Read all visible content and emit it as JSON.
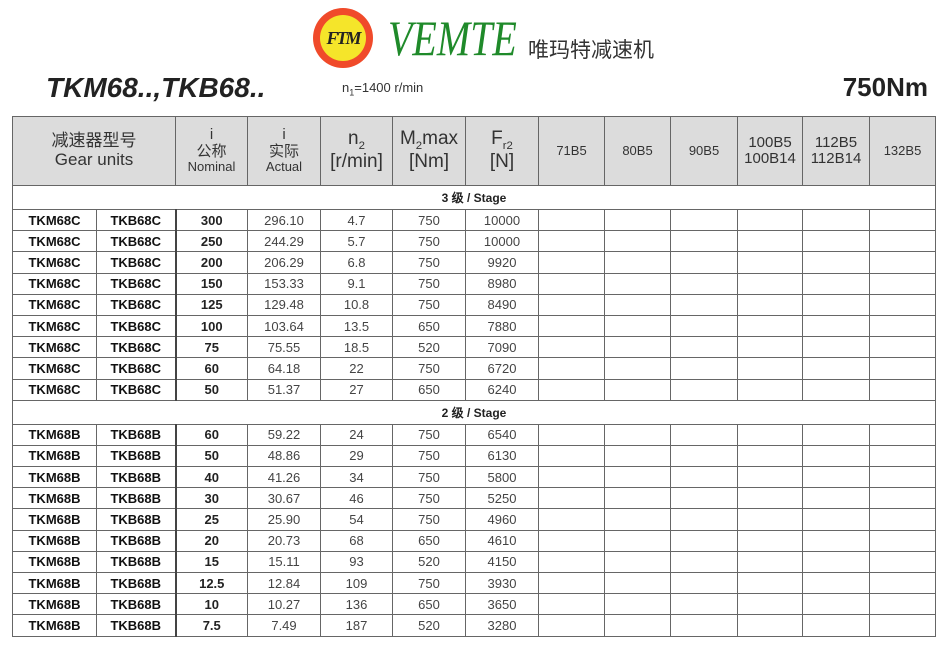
{
  "brand": {
    "logo_text": "FTM",
    "name": "VEMTE",
    "name_cn": "唯玛特减速机",
    "colors": {
      "logo_ring": "#f04a2a",
      "logo_fill": "#f5e52a",
      "brand_text": "#1f8a2a"
    }
  },
  "header": {
    "title": "TKM68..,TKB68..",
    "speed_prefix": "n",
    "speed_sub": "1",
    "speed_value": "=1400 r/min",
    "torque": "750Nm"
  },
  "columns": {
    "gear_units_cn": "减速器型号",
    "gear_units_en": "Gear units",
    "i_nominal_sym": "i",
    "i_nominal_cn": "公称",
    "i_nominal_en": "Nominal",
    "i_actual_sym": "i",
    "i_actual_cn": "实际",
    "i_actual_en": "Actual",
    "n2_sym": "n",
    "n2_sub": "2",
    "n2_unit": "[r/min]",
    "m2_sym": "M",
    "m2_sub": "2",
    "m2_suffix": "max",
    "m2_unit": "[Nm]",
    "fr2_sym": "F",
    "fr2_sub": "r2",
    "fr2_unit": "[N]",
    "motors": [
      "71B5",
      "80B5",
      "90B5",
      "100B5",
      "100B14",
      "112B5",
      "112B14",
      "132B5"
    ]
  },
  "stages": [
    {
      "label": "3 级 / Stage",
      "rows": [
        [
          "TKM68C",
          "TKB68C",
          "300",
          "296.10",
          "4.7",
          "750",
          "10000"
        ],
        [
          "TKM68C",
          "TKB68C",
          "250",
          "244.29",
          "5.7",
          "750",
          "10000"
        ],
        [
          "TKM68C",
          "TKB68C",
          "200",
          "206.29",
          "6.8",
          "750",
          "9920"
        ],
        [
          "TKM68C",
          "TKB68C",
          "150",
          "153.33",
          "9.1",
          "750",
          "8980"
        ],
        [
          "TKM68C",
          "TKB68C",
          "125",
          "129.48",
          "10.8",
          "750",
          "8490"
        ],
        [
          "TKM68C",
          "TKB68C",
          "100",
          "103.64",
          "13.5",
          "650",
          "7880"
        ],
        [
          "TKM68C",
          "TKB68C",
          "75",
          "75.55",
          "18.5",
          "520",
          "7090"
        ],
        [
          "TKM68C",
          "TKB68C",
          "60",
          "64.18",
          "22",
          "750",
          "6720"
        ],
        [
          "TKM68C",
          "TKB68C",
          "50",
          "51.37",
          "27",
          "650",
          "6240"
        ]
      ]
    },
    {
      "label": "2 级 / Stage",
      "rows": [
        [
          "TKM68B",
          "TKB68B",
          "60",
          "59.22",
          "24",
          "750",
          "6540"
        ],
        [
          "TKM68B",
          "TKB68B",
          "50",
          "48.86",
          "29",
          "750",
          "6130"
        ],
        [
          "TKM68B",
          "TKB68B",
          "40",
          "41.26",
          "34",
          "750",
          "5800"
        ],
        [
          "TKM68B",
          "TKB68B",
          "30",
          "30.67",
          "46",
          "750",
          "5250"
        ],
        [
          "TKM68B",
          "TKB68B",
          "25",
          "25.90",
          "54",
          "750",
          "4960"
        ],
        [
          "TKM68B",
          "TKB68B",
          "20",
          "20.73",
          "68",
          "650",
          "4610"
        ],
        [
          "TKM68B",
          "TKB68B",
          "15",
          "15.11",
          "93",
          "520",
          "4150"
        ],
        [
          "TKM68B",
          "TKB68B",
          "12.5",
          "12.84",
          "109",
          "750",
          "3930"
        ],
        [
          "TKM68B",
          "TKB68B",
          "10",
          "10.27",
          "136",
          "650",
          "3650"
        ],
        [
          "TKM68B",
          "TKB68B",
          "7.5",
          "7.49",
          "187",
          "520",
          "3280"
        ]
      ]
    }
  ]
}
